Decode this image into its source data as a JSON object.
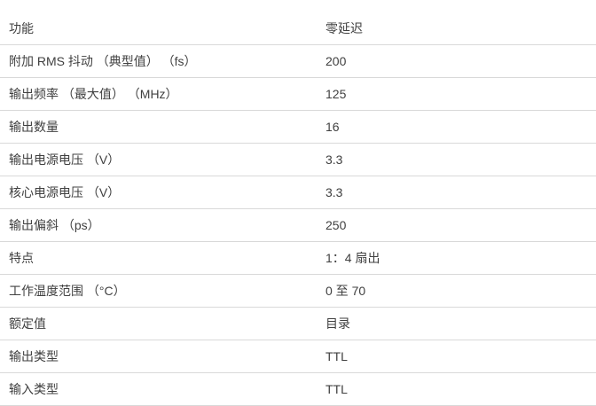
{
  "colors": {
    "background": "#ffffff",
    "text": "#404040",
    "divider": "#d9d9d9"
  },
  "table": {
    "rows": [
      {
        "label": "功能",
        "value": "零延迟"
      },
      {
        "label": "附加 RMS 抖动 （典型值） （fs）",
        "value": "200"
      },
      {
        "label": "输出频率 （最大值） （MHz）",
        "value": "125"
      },
      {
        "label": "输出数量",
        "value": "16"
      },
      {
        "label": "输出电源电压 （V）",
        "value": "3.3"
      },
      {
        "label": "核心电源电压 （V）",
        "value": "3.3"
      },
      {
        "label": "输出偏斜 （ps）",
        "value": "250"
      },
      {
        "label": "特点",
        "value": "1：4 扇出"
      },
      {
        "label": "工作温度范围 （°C）",
        "value": "0 至 70"
      },
      {
        "label": "额定值",
        "value": "目录"
      },
      {
        "label": "输出类型",
        "value": "TTL"
      },
      {
        "label": "输入类型",
        "value": "TTL"
      }
    ]
  }
}
